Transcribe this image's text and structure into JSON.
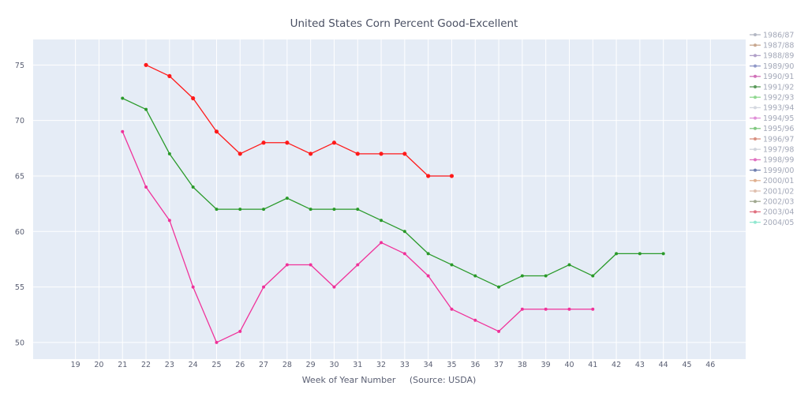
{
  "chart_data": {
    "type": "line",
    "title": "United States Corn Percent Good-Excellent",
    "xlabel": "Week of Year Number     (Source: USDA)",
    "ylabel": "",
    "x_ticks": [
      19,
      20,
      21,
      22,
      23,
      24,
      25,
      26,
      27,
      28,
      29,
      30,
      31,
      32,
      33,
      34,
      35,
      36,
      37,
      38,
      39,
      40,
      41,
      42,
      43,
      44,
      45,
      46
    ],
    "xlim": [
      17.2,
      47.5
    ],
    "y_ticks": [
      50,
      55,
      60,
      65,
      70,
      75
    ],
    "ylim": [
      48.5,
      77.3
    ],
    "grid": true,
    "legend_position": "right",
    "legend": [
      {
        "name": "1986/87",
        "color": "#b4b8c4"
      },
      {
        "name": "1987/88",
        "color": "#c8a890"
      },
      {
        "name": "1988/89",
        "color": "#b0a0c8"
      },
      {
        "name": "1989/90",
        "color": "#9098c8"
      },
      {
        "name": "1990/91",
        "color": "#d070b8"
      },
      {
        "name": "1991/92",
        "color": "#5a9a5a"
      },
      {
        "name": "1992/93",
        "color": "#90d890"
      },
      {
        "name": "1993/94",
        "color": "#d4d8e0"
      },
      {
        "name": "1994/95",
        "color": "#e090d8"
      },
      {
        "name": "1995/96",
        "color": "#80c880"
      },
      {
        "name": "1996/97",
        "color": "#d89080"
      },
      {
        "name": "1997/98",
        "color": "#d0d4dc"
      },
      {
        "name": "1998/99",
        "color": "#e070c0"
      },
      {
        "name": "1999/00",
        "color": "#7080b0"
      },
      {
        "name": "2000/01",
        "color": "#e0b090"
      },
      {
        "name": "2001/02",
        "color": "#e0c0b0"
      },
      {
        "name": "2002/03",
        "color": "#a0a890"
      },
      {
        "name": "2003/04",
        "color": "#e07080"
      },
      {
        "name": "2004/05",
        "color": "#90e8d0"
      }
    ],
    "series": [
      {
        "color": "#ff1a1a",
        "marker_size": 2.6,
        "x": [
          22,
          23,
          24,
          25,
          26,
          27,
          28,
          29,
          30,
          31,
          32,
          33,
          34,
          35
        ],
        "y": [
          75,
          74,
          72,
          69,
          67,
          68,
          68,
          67,
          68,
          67,
          67,
          67,
          65,
          65
        ]
      },
      {
        "color": "#2a9a2a",
        "marker_size": 2,
        "x": [
          21,
          22,
          23,
          24,
          25,
          26,
          27,
          28,
          29,
          30,
          31,
          32,
          33,
          34,
          35,
          36,
          37,
          38,
          39,
          40,
          41,
          42,
          43,
          44
        ],
        "y": [
          72,
          71,
          67,
          64,
          62,
          62,
          62,
          63,
          62,
          62,
          62,
          61,
          60,
          58,
          57,
          56,
          55,
          56,
          56,
          57,
          56,
          58,
          58,
          58
        ]
      },
      {
        "color": "#f0329a",
        "marker_size": 2,
        "x": [
          21,
          22,
          23,
          24,
          25,
          26,
          27,
          28,
          29,
          30,
          31,
          32,
          33,
          34,
          35,
          36,
          37,
          38,
          39,
          40,
          41
        ],
        "y": [
          69,
          64,
          61,
          55,
          50,
          51,
          55,
          57,
          57,
          55,
          57,
          59,
          58,
          56,
          53,
          52,
          51,
          53,
          53,
          53,
          53
        ]
      }
    ]
  }
}
